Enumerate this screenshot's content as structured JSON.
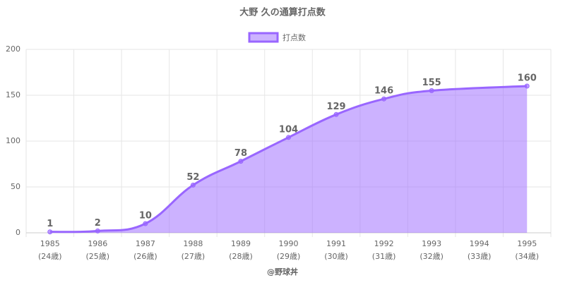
{
  "chart_data": {
    "type": "area",
    "title": "大野 久の通算打点数",
    "categories": [
      [
        "1985",
        "(24歳)"
      ],
      [
        "1986",
        "(25歳)"
      ],
      [
        "1987",
        "(26歳)"
      ],
      [
        "1988",
        "(27歳)"
      ],
      [
        "1989",
        "(28歳)"
      ],
      [
        "1990",
        "(29歳)"
      ],
      [
        "1991",
        "(30歳)"
      ],
      [
        "1992",
        "(31歳)"
      ],
      [
        "1993",
        "(32歳)"
      ],
      [
        "1994",
        "(33歳)"
      ],
      [
        "1995",
        "(34歳)"
      ]
    ],
    "series": [
      {
        "name": "打点数",
        "color": "#9966ff",
        "values": [
          1,
          2,
          10,
          52,
          78,
          104,
          129,
          146,
          155,
          null,
          160
        ]
      }
    ],
    "xlabel": "@野球丼",
    "ylim": [
      0,
      200
    ],
    "yticks": [
      0,
      50,
      100,
      150,
      200
    ],
    "grid": true,
    "legend": "top"
  }
}
